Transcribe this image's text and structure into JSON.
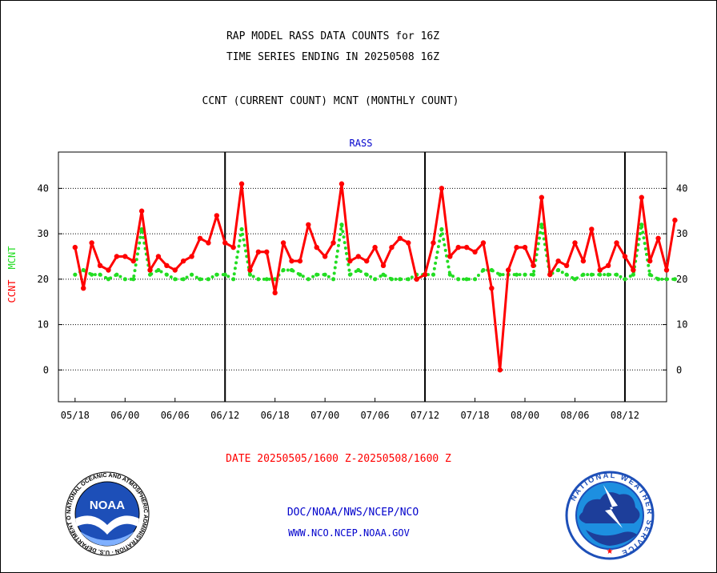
{
  "header": {
    "title_line1": "RAP MODEL RASS DATA COUNTS for 16Z",
    "title_line2": "TIME SERIES ENDING IN 20250508 16Z",
    "subtitle": "CCNT (CURRENT COUNT) MCNT (MONTHLY COUNT)",
    "panel_label": "RASS"
  },
  "footer": {
    "date_range": "DATE 20250505/1600 Z-20250508/1600 Z",
    "org_line": "DOC/NOAA/NWS/NCEP/NCO",
    "url_line": "WWW.NCO.NCEP.NOAA.GOV",
    "noaa_logo_text": "NOAA",
    "noaa_ring_text": "NATIONAL OCEANIC AND ATMOSPHERIC ADMINISTRATION · U.S. DEPARTMENT OF COMMERCE ·",
    "nws_ring_text": "NATIONAL WEATHER SERVICE"
  },
  "colors": {
    "ccnt": "#ff0000",
    "mcnt": "#22dd22",
    "footer_blue": "#0000cc",
    "axis": "#000000"
  },
  "chart_data": {
    "type": "line",
    "ylabel_left": {
      "ccnt": "CCNT",
      "mcnt": "MCNT"
    },
    "ylim": [
      -7,
      48
    ],
    "yticks": [
      0,
      10,
      20,
      30,
      40
    ],
    "xlim": [
      -2,
      71
    ],
    "xtick_labels": [
      {
        "x": 0,
        "label": "05/18"
      },
      {
        "x": 6,
        "label": "06/00"
      },
      {
        "x": 12,
        "label": "06/06"
      },
      {
        "x": 18,
        "label": "06/12"
      },
      {
        "x": 24,
        "label": "06/18"
      },
      {
        "x": 30,
        "label": "07/00"
      },
      {
        "x": 36,
        "label": "07/06"
      },
      {
        "x": 42,
        "label": "07/12"
      },
      {
        "x": 48,
        "label": "07/18"
      },
      {
        "x": 54,
        "label": "08/00"
      },
      {
        "x": 60,
        "label": "08/06"
      },
      {
        "x": 66,
        "label": "08/12"
      }
    ],
    "day_separators": [
      18,
      42,
      66
    ],
    "grid": "horizontal dotted",
    "series": [
      {
        "name": "CCNT",
        "style": "solid",
        "values": [
          27,
          18,
          28,
          23,
          22,
          25,
          25,
          24,
          35,
          22,
          25,
          23,
          22,
          24,
          25,
          29,
          28,
          34,
          28,
          27,
          41,
          22,
          26,
          26,
          17,
          28,
          24,
          24,
          32,
          27,
          25,
          28,
          41,
          24,
          25,
          24,
          27,
          23,
          27,
          29,
          28,
          20,
          21,
          28,
          40,
          25,
          27,
          27,
          26,
          28,
          18,
          0,
          22,
          27,
          27,
          23,
          38,
          21,
          24,
          23,
          28,
          24,
          31,
          22,
          23,
          28,
          25,
          22,
          38,
          24,
          29,
          22,
          33
        ]
      },
      {
        "name": "MCNT",
        "style": "dotted",
        "values": [
          21,
          22,
          21,
          21,
          20,
          21,
          20,
          20,
          31,
          21,
          22,
          21,
          20,
          20,
          21,
          20,
          20,
          21,
          21,
          20,
          31,
          21,
          20,
          20,
          20,
          22,
          22,
          21,
          20,
          21,
          21,
          20,
          32,
          21,
          22,
          21,
          20,
          21,
          20,
          20,
          20,
          21,
          21,
          21,
          31,
          21,
          20,
          20,
          20,
          22,
          22,
          21,
          21,
          21,
          21,
          21,
          32,
          21,
          22,
          21,
          20,
          21,
          21,
          21,
          21,
          21,
          20,
          21,
          32,
          21,
          20,
          20,
          20
        ]
      }
    ]
  }
}
